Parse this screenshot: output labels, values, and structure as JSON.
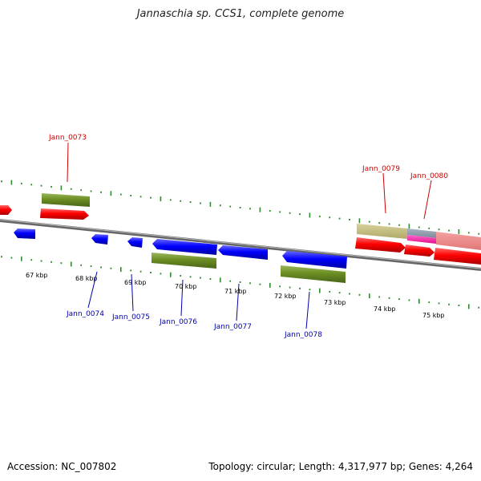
{
  "title": "Jannaschia sp. CCS1, complete genome",
  "footer": {
    "accession": "Accession: NC_007802",
    "info": "Topology: circular; Length: 4,317,977 bp; Genes: 4,264"
  },
  "kbp_labels": [
    "67 kbp",
    "68 kbp",
    "69 kbp",
    "70 kbp",
    "71 kbp",
    "72 kbp",
    "73 kbp",
    "74 kbp",
    "75 kbp"
  ],
  "gene_labels": {
    "top": [
      "Jann_0073",
      "Jann_0079",
      "Jann_0080"
    ],
    "bottom": [
      "Jann_0074",
      "Jann_0075",
      "Jann_0076",
      "Jann_0077",
      "Jann_0078"
    ]
  },
  "colors": {
    "forward_cds": "#ff0000",
    "reverse_cds": "#0000ff",
    "gene": "#6b8e23",
    "label_forward": "#cc0000",
    "label_reverse": "#0000aa",
    "tick": "#2e8b2e",
    "backbone": "#888888"
  }
}
